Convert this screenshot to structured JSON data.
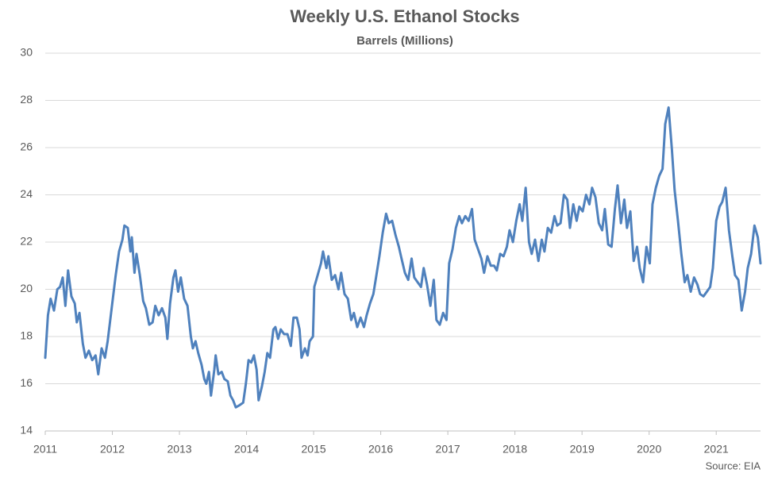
{
  "chart_data": {
    "type": "line",
    "title": "Weekly U.S. Ethanol Stocks",
    "subtitle": "Barrels (Millions)",
    "source": "Source: EIA",
    "color": "#4f81bd",
    "grid": true,
    "xlim": [
      2011,
      2021.66
    ],
    "ylim": [
      14,
      30
    ],
    "xticks": [
      2011,
      2012,
      2013,
      2014,
      2015,
      2016,
      2017,
      2018,
      2019,
      2020,
      2021
    ],
    "yticks": [
      14,
      16,
      18,
      20,
      22,
      24,
      26,
      28,
      30
    ],
    "x": [
      2011.0,
      2011.04,
      2011.08,
      2011.13,
      2011.18,
      2011.22,
      2011.26,
      2011.3,
      2011.34,
      2011.39,
      2011.44,
      2011.47,
      2011.51,
      2011.56,
      2011.6,
      2011.65,
      2011.7,
      2011.75,
      2011.79,
      2011.84,
      2011.89,
      2011.93,
      2011.99,
      2012.05,
      2012.1,
      2012.15,
      2012.18,
      2012.23,
      2012.27,
      2012.29,
      2012.33,
      2012.36,
      2012.41,
      2012.46,
      2012.5,
      2012.55,
      2012.6,
      2012.64,
      2012.69,
      2012.74,
      2012.79,
      2012.82,
      2012.86,
      2012.91,
      2012.94,
      2012.98,
      2013.02,
      2013.07,
      2013.12,
      2013.17,
      2013.2,
      2013.24,
      2013.28,
      2013.33,
      2013.37,
      2013.4,
      2013.44,
      2013.47,
      2013.52,
      2013.54,
      2013.58,
      2013.63,
      2013.67,
      2013.72,
      2013.76,
      2013.8,
      2013.84,
      2013.9,
      2013.95,
      2013.99,
      2014.03,
      2014.07,
      2014.11,
      2014.15,
      2014.18,
      2014.23,
      2014.27,
      2014.31,
      2014.35,
      2014.4,
      2014.43,
      2014.47,
      2014.51,
      2014.56,
      2014.61,
      2014.66,
      2014.7,
      2014.75,
      2014.79,
      2014.82,
      2014.87,
      2014.91,
      2014.94,
      2014.99,
      2015.01,
      2015.06,
      2015.11,
      2015.14,
      2015.19,
      2015.22,
      2015.27,
      2015.32,
      2015.37,
      2015.41,
      2015.46,
      2015.51,
      2015.56,
      2015.6,
      2015.65,
      2015.7,
      2015.75,
      2015.79,
      2015.84,
      2015.89,
      2015.93,
      2015.98,
      2016.03,
      2016.08,
      2016.12,
      2016.17,
      2016.22,
      2016.27,
      2016.31,
      2016.36,
      2016.41,
      2016.46,
      2016.5,
      2016.55,
      2016.6,
      2016.64,
      2016.69,
      2016.74,
      2016.79,
      2016.83,
      2016.88,
      2016.93,
      2016.98,
      2017.02,
      2017.07,
      2017.12,
      2017.17,
      2017.21,
      2017.26,
      2017.31,
      2017.36,
      2017.4,
      2017.45,
      2017.5,
      2017.54,
      2017.59,
      2017.64,
      2017.69,
      2017.73,
      2017.78,
      2017.83,
      2017.88,
      2017.92,
      2017.97,
      2018.02,
      2018.07,
      2018.11,
      2018.16,
      2018.21,
      2018.25,
      2018.3,
      2018.35,
      2018.4,
      2018.44,
      2018.49,
      2018.54,
      2018.59,
      2018.63,
      2018.68,
      2018.73,
      2018.78,
      2018.82,
      2018.87,
      2018.92,
      2018.96,
      2019.01,
      2019.06,
      2019.11,
      2019.15,
      2019.2,
      2019.25,
      2019.3,
      2019.34,
      2019.39,
      2019.44,
      2019.49,
      2019.53,
      2019.58,
      2019.63,
      2019.67,
      2019.72,
      2019.77,
      2019.82,
      2019.86,
      2019.91,
      2019.96,
      2020.01,
      2020.05,
      2020.1,
      2020.15,
      2020.2,
      2020.24,
      2020.29,
      2020.34,
      2020.38,
      2020.43,
      2020.48,
      2020.53,
      2020.57,
      2020.62,
      2020.67,
      2020.72,
      2020.76,
      2020.81,
      2020.86,
      2020.91,
      2020.95,
      2021.0,
      2021.05,
      2021.09,
      2021.14,
      2021.19,
      2021.24,
      2021.28,
      2021.33,
      2021.38,
      2021.43,
      2021.47,
      2021.52,
      2021.57,
      2021.62,
      2021.66
    ],
    "values": [
      17.1,
      18.9,
      19.6,
      19.1,
      20.0,
      20.1,
      20.5,
      19.3,
      20.8,
      19.7,
      19.4,
      18.6,
      19.0,
      17.7,
      17.1,
      17.4,
      17.0,
      17.2,
      16.4,
      17.5,
      17.1,
      17.8,
      19.2,
      20.6,
      21.6,
      22.1,
      22.7,
      22.6,
      21.6,
      22.2,
      20.7,
      21.5,
      20.6,
      19.5,
      19.2,
      18.5,
      18.6,
      19.3,
      18.9,
      19.2,
      18.8,
      17.9,
      19.4,
      20.5,
      20.8,
      19.9,
      20.5,
      19.6,
      19.3,
      18.0,
      17.5,
      17.8,
      17.3,
      16.8,
      16.2,
      16.0,
      16.5,
      15.5,
      16.6,
      17.2,
      16.4,
      16.5,
      16.2,
      16.1,
      15.5,
      15.3,
      15.0,
      15.1,
      15.2,
      16.0,
      17.0,
      16.9,
      17.2,
      16.6,
      15.3,
      15.9,
      16.5,
      17.3,
      17.1,
      18.3,
      18.4,
      17.9,
      18.3,
      18.1,
      18.1,
      17.6,
      18.8,
      18.8,
      18.3,
      17.1,
      17.5,
      17.2,
      17.8,
      18.0,
      20.1,
      20.6,
      21.1,
      21.6,
      20.9,
      21.4,
      20.4,
      20.6,
      20.0,
      20.7,
      19.8,
      19.6,
      18.7,
      19.0,
      18.4,
      18.8,
      18.4,
      18.9,
      19.4,
      19.8,
      20.5,
      21.4,
      22.4,
      23.2,
      22.8,
      22.9,
      22.3,
      21.8,
      21.3,
      20.7,
      20.4,
      21.3,
      20.5,
      20.3,
      20.1,
      20.9,
      20.2,
      19.3,
      20.4,
      18.7,
      18.5,
      19.0,
      18.7,
      21.1,
      21.7,
      22.6,
      23.1,
      22.8,
      23.1,
      22.9,
      23.4,
      22.1,
      21.7,
      21.3,
      20.7,
      21.4,
      21.0,
      21.0,
      20.8,
      21.5,
      21.4,
      21.8,
      22.5,
      22.0,
      22.9,
      23.6,
      22.9,
      24.3,
      22.0,
      21.5,
      22.1,
      21.2,
      22.1,
      21.6,
      22.6,
      22.4,
      23.1,
      22.7,
      22.8,
      24.0,
      23.8,
      22.6,
      23.6,
      22.9,
      23.5,
      23.3,
      24.0,
      23.6,
      24.3,
      23.9,
      22.8,
      22.5,
      23.4,
      21.9,
      21.8,
      23.4,
      24.4,
      22.8,
      23.8,
      22.6,
      23.3,
      21.2,
      21.8,
      20.9,
      20.3,
      21.8,
      21.1,
      23.6,
      24.3,
      24.8,
      25.1,
      27.0,
      27.7,
      25.9,
      24.2,
      22.9,
      21.5,
      20.3,
      20.6,
      19.9,
      20.5,
      20.2,
      19.8,
      19.7,
      19.9,
      20.1,
      20.9,
      22.9,
      23.5,
      23.7,
      24.3,
      22.5,
      21.4,
      20.6,
      20.4,
      19.1,
      19.9,
      20.9,
      21.5,
      22.7,
      22.2,
      21.1
    ]
  }
}
